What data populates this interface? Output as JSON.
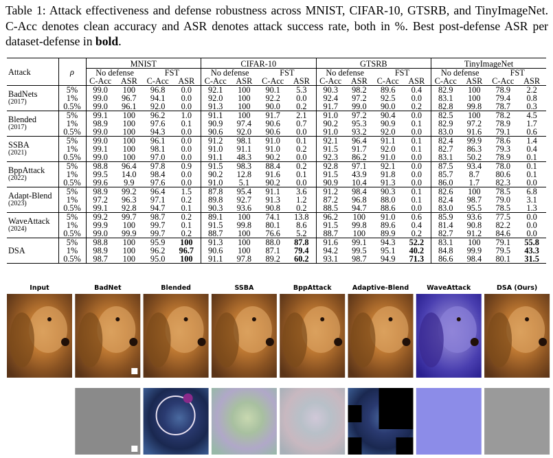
{
  "caption": {
    "text": "Table 1: Attack effectiveness and defense robustness across MNIST, CIFAR-10, GTSRB, and TinyImageNet. C-Acc denotes clean accuracy and ASR denotes attack success rate, both in %. Best post-defense ASR per dataset-defense in",
    "emphasis": "bold",
    "end": "."
  },
  "table": {
    "header": {
      "attack": "Attack",
      "rho": "ρ",
      "datasets": [
        "MNIST",
        "CIFAR-10",
        "GTSRB",
        "TinyImageNet"
      ],
      "defenses": [
        "No defense",
        "FST"
      ],
      "metrics": [
        "C-Acc",
        "ASR"
      ]
    },
    "groups": [
      {
        "name": "BadNets",
        "year": "(2017)",
        "rows": [
          {
            "rho": "5%",
            "values": [
              "99.0",
              "100",
              "96.8",
              "0.0",
              "92.1",
              "100",
              "90.1",
              "5.3",
              "90.3",
              "98.2",
              "89.6",
              "0.4",
              "82.9",
              "100",
              "78.9",
              "2.2"
            ]
          },
          {
            "rho": "1%",
            "values": [
              "99.0",
              "96.7",
              "94.1",
              "0.0",
              "92.0",
              "100",
              "92.2",
              "0.0",
              "92.4",
              "97.2",
              "92.5",
              "0.0",
              "83.1",
              "100",
              "79.4",
              "0.8"
            ]
          },
          {
            "rho": "0.5%",
            "values": [
              "99.0",
              "96.1",
              "92.0",
              "0.0",
              "91.3",
              "100",
              "90.0",
              "0.2",
              "91.7",
              "99.0",
              "90.0",
              "0.2",
              "82.8",
              "99.8",
              "78.7",
              "0.3"
            ]
          }
        ]
      },
      {
        "name": "Blended",
        "year": "(2017)",
        "rows": [
          {
            "rho": "5%",
            "values": [
              "99.1",
              "100",
              "96.2",
              "1.0",
              "91.1",
              "100",
              "91.7",
              "2.1",
              "91.0",
              "97.2",
              "90.4",
              "0.0",
              "82.5",
              "100",
              "78.2",
              "4.5"
            ]
          },
          {
            "rho": "1%",
            "values": [
              "98.9",
              "100",
              "97.6",
              "0.1",
              "90.9",
              "97.4",
              "90.6",
              "0.7",
              "90.2",
              "95.3",
              "90.9",
              "0.1",
              "82.9",
              "97.2",
              "78.9",
              "1.7"
            ]
          },
          {
            "rho": "0.5%",
            "values": [
              "99.0",
              "100",
              "94.3",
              "0.0",
              "90.6",
              "92.0",
              "90.6",
              "0.0",
              "91.0",
              "93.2",
              "92.0",
              "0.0",
              "83.0",
              "91.6",
              "79.1",
              "0.6"
            ]
          }
        ]
      },
      {
        "name": "SSBA",
        "year": "(2021)",
        "rows": [
          {
            "rho": "5%",
            "values": [
              "99.0",
              "100",
              "96.1",
              "0.0",
              "91.2",
              "98.1",
              "91.0",
              "0.1",
              "92.1",
              "96.4",
              "91.1",
              "0.1",
              "82.4",
              "99.9",
              "78.6",
              "1.4"
            ]
          },
          {
            "rho": "1%",
            "values": [
              "99.1",
              "100",
              "98.1",
              "0.0",
              "91.0",
              "91.1",
              "91.0",
              "0.2",
              "91.5",
              "91.7",
              "92.0",
              "0.1",
              "82.7",
              "86.3",
              "79.3",
              "0.4"
            ]
          },
          {
            "rho": "0.5%",
            "values": [
              "99.0",
              "100",
              "97.0",
              "0.0",
              "91.1",
              "48.3",
              "90.2",
              "0.0",
              "92.3",
              "86.2",
              "91.0",
              "0.0",
              "83.1",
              "50.2",
              "78.9",
              "0.1"
            ]
          }
        ]
      },
      {
        "name": "BppAttack",
        "year": "(2022)",
        "rows": [
          {
            "rho": "5%",
            "values": [
              "98.8",
              "96.4",
              "97.8",
              "0.9",
              "91.5",
              "98.3",
              "88.4",
              "0.2",
              "92.8",
              "97.1",
              "92.1",
              "0.0",
              "87.5",
              "93.4",
              "78.0",
              "0.1"
            ]
          },
          {
            "rho": "1%",
            "values": [
              "99.5",
              "14.0",
              "98.4",
              "0.0",
              "90.2",
              "12.8",
              "91.6",
              "0.1",
              "91.5",
              "43.9",
              "91.8",
              "0.0",
              "85.7",
              "8.7",
              "80.6",
              "0.1"
            ]
          },
          {
            "rho": "0.5%",
            "values": [
              "99.6",
              "9.9",
              "97.6",
              "0.0",
              "91.0",
              "5.1",
              "90.2",
              "0.0",
              "90.9",
              "10.4",
              "91.3",
              "0.0",
              "86.0",
              "1.7",
              "82.3",
              "0.0"
            ]
          }
        ]
      },
      {
        "name": "Adapt-Blend",
        "year": "(2023)",
        "rows": [
          {
            "rho": "5%",
            "values": [
              "98.9",
              "99.2",
              "96.4",
              "1.5",
              "87.8",
              "95.4",
              "91.1",
              "3.6",
              "91.2",
              "98.4",
              "90.3",
              "0.1",
              "82.6",
              "100",
              "78.5",
              "6.8"
            ]
          },
          {
            "rho": "1%",
            "values": [
              "97.2",
              "96.3",
              "97.1",
              "0.2",
              "89.8",
              "92.7",
              "91.3",
              "1.2",
              "87.2",
              "96.8",
              "88.0",
              "0.1",
              "82.4",
              "98.7",
              "79.0",
              "3.1"
            ]
          },
          {
            "rho": "0.5%",
            "values": [
              "99.1",
              "92.8",
              "94.7",
              "0.1",
              "90.3",
              "93.6",
              "90.8",
              "0.2",
              "88.5",
              "94.7",
              "88.6",
              "0.0",
              "83.0",
              "95.5",
              "78.5",
              "1.3"
            ]
          }
        ]
      },
      {
        "name": "WaveAttack",
        "year": "(2024)",
        "rows": [
          {
            "rho": "5%",
            "values": [
              "99.2",
              "99.7",
              "98.7",
              "0.2",
              "89.1",
              "100",
              "74.1",
              "13.8",
              "96.2",
              "100",
              "91.0",
              "0.6",
              "85.9",
              "93.6",
              "77.5",
              "0.0"
            ]
          },
          {
            "rho": "1%",
            "values": [
              "99.9",
              "100",
              "99.7",
              "0.1",
              "91.5",
              "99.8",
              "80.1",
              "8.6",
              "91.5",
              "99.8",
              "89.6",
              "0.4",
              "81.4",
              "90.8",
              "82.2",
              "0.0"
            ]
          },
          {
            "rho": "0.5%",
            "values": [
              "99.0",
              "99.9",
              "99.7",
              "0.2",
              "88.7",
              "100",
              "76.6",
              "5.2",
              "88.7",
              "100",
              "89.9",
              "0.2",
              "82.7",
              "91.2",
              "84.6",
              "0.0"
            ]
          }
        ]
      },
      {
        "name": "DSA",
        "bold_columns": [
          3,
          7,
          11,
          15
        ],
        "rows": [
          {
            "rho": "5%",
            "values": [
              "98.8",
              "100",
              "95.9",
              "100",
              "91.3",
              "100",
              "88.0",
              "87.8",
              "91.6",
              "99.1",
              "94.3",
              "52.2",
              "83.1",
              "100",
              "79.1",
              "55.8"
            ]
          },
          {
            "rho": "1%",
            "values": [
              "98.9",
              "100",
              "96.2",
              "96.7",
              "90.6",
              "100",
              "87.1",
              "79.4",
              "94.2",
              "99.5",
              "95.1",
              "40.2",
              "84.8",
              "99.9",
              "79.5",
              "43.3"
            ]
          },
          {
            "rho": "0.5%",
            "values": [
              "98.7",
              "100",
              "95.0",
              "100",
              "91.1",
              "97.8",
              "89.2",
              "60.2",
              "93.1",
              "98.7",
              "94.9",
              "71.3",
              "86.6",
              "98.4",
              "80.1",
              "31.5"
            ]
          }
        ]
      }
    ]
  },
  "figure": {
    "labels": [
      "Input",
      "BadNet",
      "Blended",
      "SSBA",
      "BppAttack",
      "Adaptive-Blend",
      "WaveAttack",
      "DSA (Ours)"
    ]
  }
}
